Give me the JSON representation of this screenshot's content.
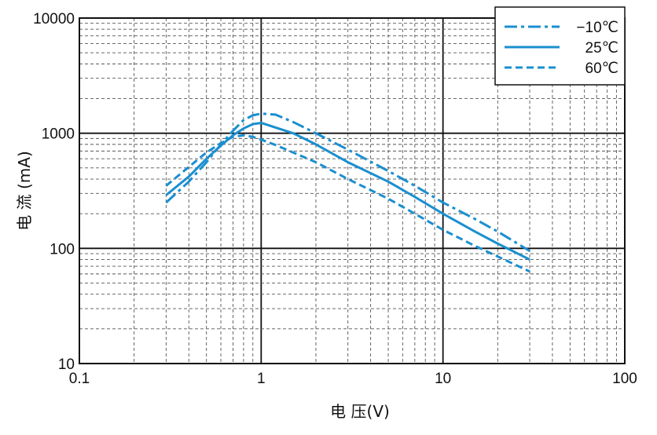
{
  "chart_data": {
    "type": "line",
    "xscale": "log",
    "yscale": "log",
    "xlim": [
      0.1,
      100
    ],
    "ylim": [
      10,
      10000
    ],
    "xticks": [
      "0.1",
      "1",
      "10",
      "100"
    ],
    "yticks": [
      "10",
      "100",
      "1000",
      "10000"
    ],
    "xlabel": "电 压(V)",
    "ylabel": "电 流 (mA)",
    "grid": true,
    "legend_position": "top-right",
    "series": [
      {
        "name": "−10℃",
        "style": "dashdot",
        "color": "#1a8fd0",
        "points": [
          [
            0.3,
            250
          ],
          [
            0.4,
            380
          ],
          [
            0.5,
            560
          ],
          [
            0.6,
            800
          ],
          [
            0.7,
            1050
          ],
          [
            0.8,
            1300
          ],
          [
            0.9,
            1430
          ],
          [
            1.0,
            1480
          ],
          [
            1.2,
            1450
          ],
          [
            1.5,
            1250
          ],
          [
            2.0,
            1000
          ],
          [
            3.0,
            720
          ],
          [
            5.0,
            470
          ],
          [
            7.0,
            350
          ],
          [
            10.0,
            250
          ],
          [
            15.0,
            180
          ],
          [
            20.0,
            140
          ],
          [
            30.0,
            95
          ]
        ]
      },
      {
        "name": "25℃",
        "style": "solid",
        "color": "#1a8fd0",
        "points": [
          [
            0.3,
            290
          ],
          [
            0.4,
            420
          ],
          [
            0.5,
            600
          ],
          [
            0.6,
            780
          ],
          [
            0.7,
            960
          ],
          [
            0.8,
            1100
          ],
          [
            0.9,
            1200
          ],
          [
            1.0,
            1230
          ],
          [
            1.2,
            1120
          ],
          [
            1.5,
            1000
          ],
          [
            2.0,
            800
          ],
          [
            3.0,
            560
          ],
          [
            5.0,
            380
          ],
          [
            7.0,
            280
          ],
          [
            10.0,
            200
          ],
          [
            15.0,
            140
          ],
          [
            20.0,
            110
          ],
          [
            30.0,
            80
          ]
        ]
      },
      {
        "name": "60℃",
        "style": "dashed",
        "color": "#1a8fd0",
        "points": [
          [
            0.3,
            350
          ],
          [
            0.4,
            510
          ],
          [
            0.5,
            680
          ],
          [
            0.6,
            820
          ],
          [
            0.7,
            930
          ],
          [
            0.8,
            960
          ],
          [
            0.9,
            930
          ],
          [
            1.0,
            880
          ],
          [
            1.2,
            790
          ],
          [
            1.5,
            680
          ],
          [
            2.0,
            560
          ],
          [
            3.0,
            400
          ],
          [
            5.0,
            270
          ],
          [
            7.0,
            200
          ],
          [
            10.0,
            145
          ],
          [
            15.0,
            105
          ],
          [
            20.0,
            85
          ],
          [
            30.0,
            63
          ]
        ]
      }
    ]
  }
}
